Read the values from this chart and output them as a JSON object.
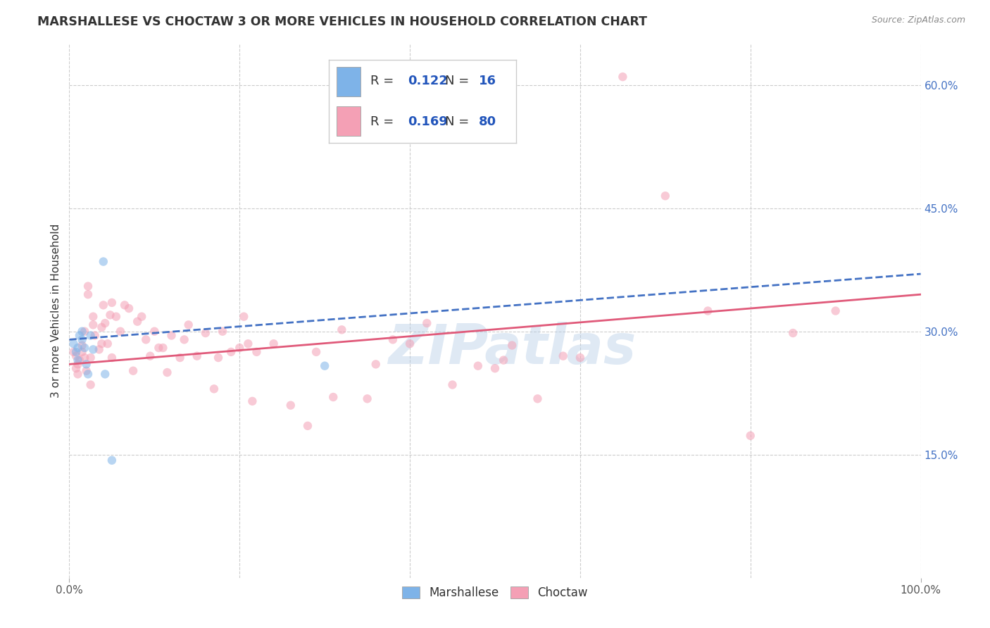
{
  "title": "MARSHALLESE VS CHOCTAW 3 OR MORE VEHICLES IN HOUSEHOLD CORRELATION CHART",
  "source": "Source: ZipAtlas.com",
  "ylabel": "3 or more Vehicles in Household",
  "watermark": "ZIPatlas",
  "xlim": [
    0.0,
    1.0
  ],
  "ylim": [
    0.0,
    0.65
  ],
  "legend_marshallese_R": "0.122",
  "legend_marshallese_N": "16",
  "legend_choctaw_R": "0.169",
  "legend_choctaw_N": "80",
  "marshallese_color": "#7eb3e8",
  "choctaw_color": "#f4a0b5",
  "marshallese_line_color": "#4472c4",
  "choctaw_line_color": "#e05a7a",
  "marshallese_x": [
    0.005,
    0.008,
    0.01,
    0.01,
    0.012,
    0.015,
    0.015,
    0.018,
    0.02,
    0.022,
    0.025,
    0.028,
    0.04,
    0.042,
    0.05,
    0.3
  ],
  "marshallese_y": [
    0.285,
    0.275,
    0.28,
    0.265,
    0.295,
    0.3,
    0.29,
    0.28,
    0.26,
    0.248,
    0.295,
    0.278,
    0.385,
    0.248,
    0.143,
    0.258
  ],
  "choctaw_x": [
    0.005,
    0.008,
    0.008,
    0.01,
    0.01,
    0.012,
    0.015,
    0.015,
    0.018,
    0.018,
    0.02,
    0.022,
    0.022,
    0.025,
    0.025,
    0.028,
    0.028,
    0.03,
    0.035,
    0.038,
    0.038,
    0.04,
    0.042,
    0.045,
    0.048,
    0.05,
    0.05,
    0.055,
    0.06,
    0.065,
    0.07,
    0.075,
    0.08,
    0.085,
    0.09,
    0.095,
    0.1,
    0.105,
    0.11,
    0.115,
    0.12,
    0.13,
    0.135,
    0.14,
    0.15,
    0.16,
    0.17,
    0.175,
    0.18,
    0.19,
    0.2,
    0.205,
    0.21,
    0.215,
    0.22,
    0.24,
    0.26,
    0.28,
    0.29,
    0.31,
    0.32,
    0.35,
    0.36,
    0.38,
    0.4,
    0.42,
    0.45,
    0.48,
    0.5,
    0.51,
    0.52,
    0.55,
    0.58,
    0.6,
    0.65,
    0.7,
    0.75,
    0.8,
    0.85,
    0.9
  ],
  "choctaw_y": [
    0.275,
    0.27,
    0.255,
    0.26,
    0.248,
    0.265,
    0.275,
    0.283,
    0.3,
    0.268,
    0.252,
    0.355,
    0.345,
    0.235,
    0.268,
    0.318,
    0.308,
    0.295,
    0.278,
    0.305,
    0.285,
    0.332,
    0.31,
    0.285,
    0.32,
    0.335,
    0.268,
    0.318,
    0.3,
    0.332,
    0.328,
    0.252,
    0.312,
    0.318,
    0.29,
    0.27,
    0.3,
    0.28,
    0.28,
    0.25,
    0.295,
    0.268,
    0.29,
    0.308,
    0.27,
    0.298,
    0.23,
    0.268,
    0.3,
    0.275,
    0.28,
    0.318,
    0.285,
    0.215,
    0.275,
    0.285,
    0.21,
    0.185,
    0.275,
    0.22,
    0.302,
    0.218,
    0.26,
    0.29,
    0.285,
    0.31,
    0.235,
    0.258,
    0.255,
    0.265,
    0.283,
    0.218,
    0.27,
    0.268,
    0.61,
    0.465,
    0.325,
    0.173,
    0.298,
    0.325
  ],
  "grid_color": "#cccccc",
  "background_color": "#ffffff",
  "marker_size": 80,
  "marker_alpha": 0.55,
  "marshallese_trend_start_y": 0.29,
  "marshallese_trend_end_y": 0.37,
  "choctaw_trend_start_y": 0.26,
  "choctaw_trend_end_y": 0.345
}
